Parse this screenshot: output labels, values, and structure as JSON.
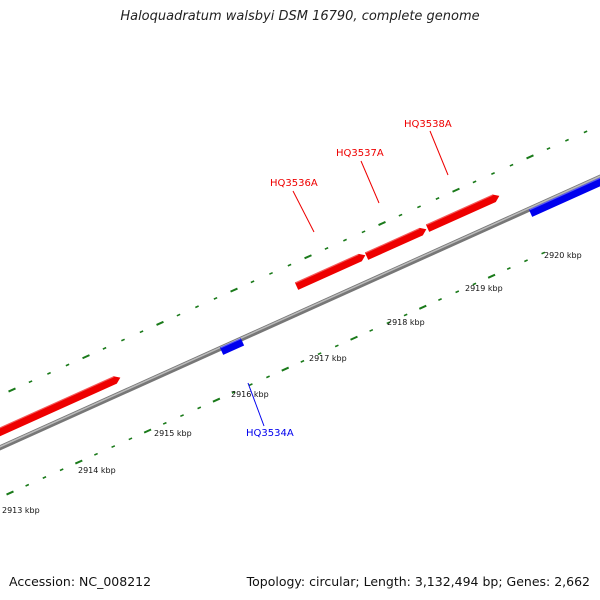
{
  "title": "Haloquadratum walsbyi DSM 16790, complete genome",
  "footer": {
    "accession": "Accession: NC_008212",
    "summary": "Topology: circular; Length: 3,132,494 bp; Genes: 2,662"
  },
  "colors": {
    "forward_gene": "#ee0000",
    "reverse_gene": "#0000ee",
    "backbone": "#888888",
    "tick": "#1a7a1a"
  },
  "scale_labels": [
    "2913 kbp",
    "2914 kbp",
    "2915 kbp",
    "2916 kbp",
    "2917 kbp",
    "2918 kbp",
    "2919 kbp",
    "2920 kbp"
  ],
  "forward_gene_labels": [
    "HQ3536A",
    "HQ3537A",
    "HQ3538A"
  ],
  "reverse_gene_labels": [
    "HQ3534A"
  ]
}
